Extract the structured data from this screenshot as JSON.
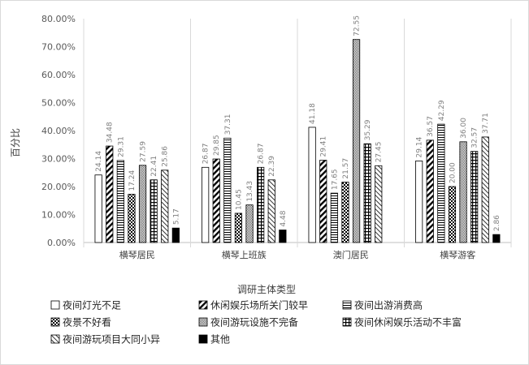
{
  "chart_data": {
    "type": "bar",
    "xlabel": "调研主体类型",
    "ylabel": "百分比",
    "ylim": [
      0,
      80
    ],
    "yticks": [
      "0.00%",
      "10.00%",
      "20.00%",
      "30.00%",
      "40.00%",
      "50.00%",
      "60.00%",
      "70.00%",
      "80.00%"
    ],
    "grid": false,
    "legend_position": "bottom",
    "categories": [
      "横琴居民",
      "横琴上班族",
      "澳门居民",
      "横琴游客"
    ],
    "series": [
      {
        "name": "夜间灯光不足",
        "values": [
          24.14,
          26.87,
          41.18,
          29.14
        ],
        "labels": [
          "24.14",
          "26.87",
          "41.18",
          "29.14"
        ]
      },
      {
        "name": "休闲娱乐场所关门较早",
        "values": [
          34.48,
          29.85,
          29.41,
          36.57
        ],
        "labels": [
          "34.48",
          "29.85",
          "29.41",
          "36.57"
        ]
      },
      {
        "name": "夜间出游消费高",
        "values": [
          29.31,
          37.31,
          17.65,
          42.29
        ],
        "labels": [
          "29.31",
          "37.31",
          "17.65",
          "42.29"
        ]
      },
      {
        "name": "夜景不好看",
        "values": [
          17.24,
          10.45,
          21.57,
          20.0
        ],
        "labels": [
          "17.24",
          "10.45",
          "21.57",
          "20.00"
        ]
      },
      {
        "name": "夜间游玩设施不完备",
        "values": [
          27.59,
          13.43,
          72.55,
          36.0
        ],
        "labels": [
          "27.59",
          "13.43",
          "72.55",
          "36.00"
        ]
      },
      {
        "name": "夜间休闲娱乐活动不丰富",
        "values": [
          22.41,
          26.87,
          35.29,
          32.57
        ],
        "labels": [
          "22.41",
          "26.87",
          "35.29",
          "32.57"
        ]
      },
      {
        "name": "夜间游玩项目大同小异",
        "values": [
          25.86,
          22.39,
          27.45,
          37.71
        ],
        "labels": [
          "25.86",
          "22.39",
          "27.45",
          "37.71"
        ]
      },
      {
        "name": "其他",
        "values": [
          5.17,
          4.48,
          0,
          2.86
        ],
        "labels": [
          "5.17",
          "4.48",
          "",
          "2.86"
        ]
      }
    ]
  }
}
